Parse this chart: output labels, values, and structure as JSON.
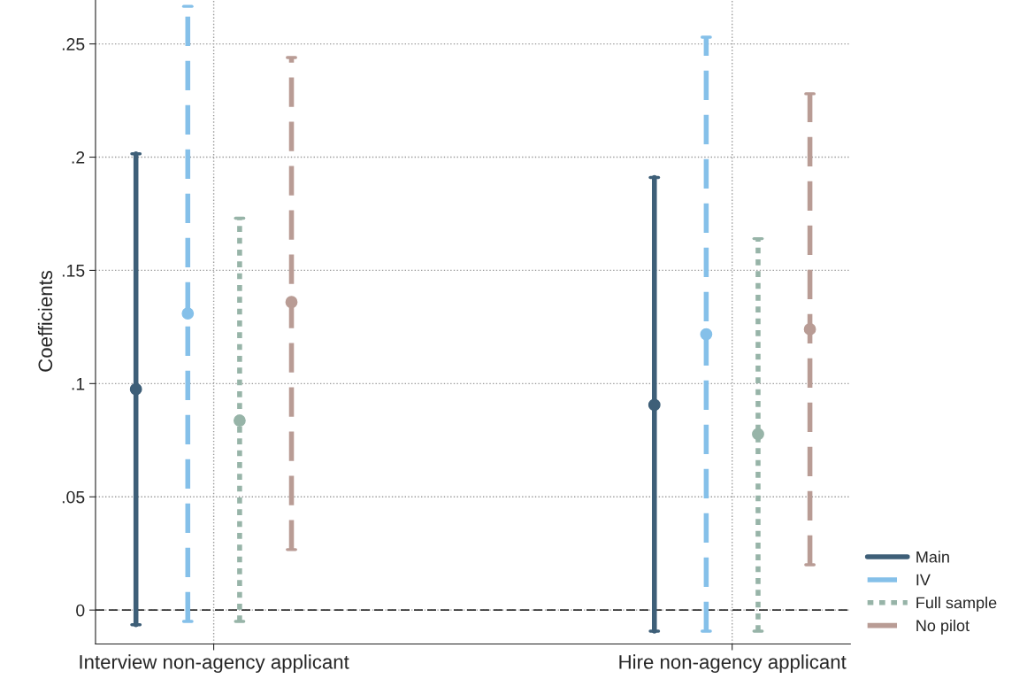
{
  "chart_data": {
    "type": "scatter",
    "ylabel": "Coefficients",
    "categories": [
      "Interview non-agency applicant",
      "Hire non-agency applicant"
    ],
    "series": [
      {
        "name": "Main",
        "color": "#3e5f78",
        "line_style": "solid",
        "values": [
          0.0975,
          0.0906
        ],
        "errors": [
          [
            -0.0065,
            0.2015
          ],
          [
            -0.0093,
            0.191
          ]
        ]
      },
      {
        "name": "IV",
        "color": "#85c0e9",
        "line_style": "dashed",
        "values": [
          0.131,
          0.1218
        ],
        "errors": [
          [
            -0.005,
            0.2666
          ],
          [
            -0.0093,
            0.253
          ]
        ]
      },
      {
        "name": "Full sample",
        "color": "#97b4a8",
        "line_style": "dotted",
        "values": [
          0.0837,
          0.0777
        ],
        "errors": [
          [
            -0.005,
            0.173
          ],
          [
            -0.0093,
            0.164
          ]
        ]
      },
      {
        "name": "No pilot",
        "color": "#b99c95",
        "line_style": "dashed",
        "values": [
          0.136,
          0.124
        ],
        "errors": [
          [
            0.0267,
            0.244
          ],
          [
            0.02,
            0.228
          ]
        ]
      }
    ],
    "ylim": [
      -0.015,
      0.27
    ],
    "yticks": [
      {
        "value": 0,
        "label": "0"
      },
      {
        "value": 0.05,
        "label": ".05"
      },
      {
        "value": 0.1,
        "label": ".1"
      },
      {
        "value": 0.15,
        "label": ".15"
      },
      {
        "value": 0.2,
        "label": ".2"
      },
      {
        "value": 0.25,
        "label": ".25"
      }
    ],
    "ref_lines": [
      {
        "axis": "y",
        "value": 0,
        "color": "#333333",
        "line_style": "dashed"
      }
    ],
    "grid": true,
    "legend": "bottom right",
    "marker": "circle"
  }
}
